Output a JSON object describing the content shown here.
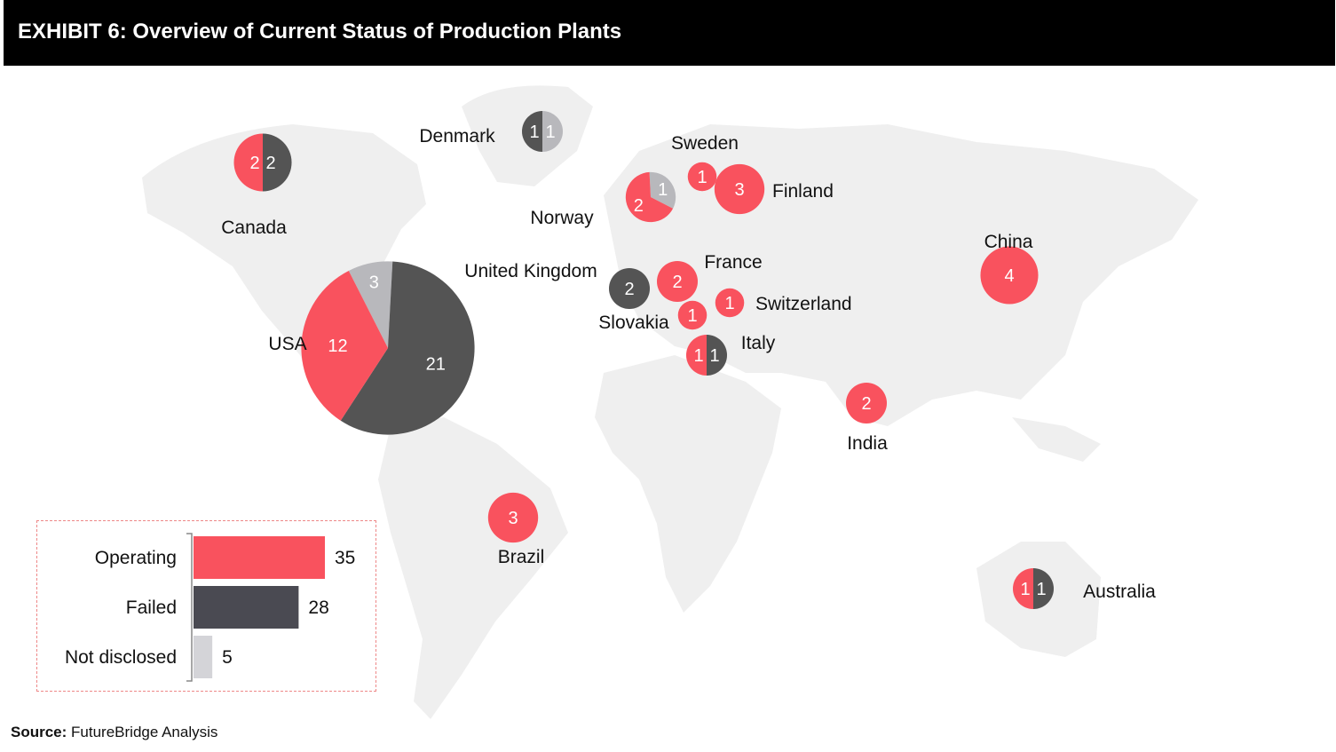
{
  "header": {
    "title": "EXHIBIT 6: Overview of Current Status of Production Plants"
  },
  "source": {
    "label": "Source:",
    "text": "FutureBridge Analysis"
  },
  "colors": {
    "operating": "#F9525E",
    "failed": "#545454",
    "not_disclosed": "#B8B8BC",
    "summary_failed": "#4A4A52",
    "summary_not_disclosed": "#D4D4D8",
    "map": "#EFEFEF"
  },
  "chart_data": [
    {
      "type": "pie",
      "title": "",
      "categories": [
        "Operating",
        "Failed",
        "Not disclosed"
      ],
      "countries": [
        {
          "name": "Canada",
          "values": [
            2,
            2,
            0
          ]
        },
        {
          "name": "Denmark",
          "values": [
            0,
            1,
            1
          ]
        },
        {
          "name": "Norway",
          "values": [
            2,
            0,
            1
          ]
        },
        {
          "name": "Sweden",
          "values": [
            1,
            0,
            0
          ]
        },
        {
          "name": "Finland",
          "values": [
            3,
            0,
            0
          ]
        },
        {
          "name": "China",
          "values": [
            4,
            0,
            0
          ]
        },
        {
          "name": "United Kingdom",
          "values": [
            0,
            2,
            0
          ]
        },
        {
          "name": "France",
          "values": [
            2,
            0,
            0
          ]
        },
        {
          "name": "Switzerland",
          "values": [
            1,
            0,
            0
          ]
        },
        {
          "name": "Slovakia",
          "values": [
            1,
            0,
            0
          ]
        },
        {
          "name": "Italy",
          "values": [
            1,
            1,
            0
          ]
        },
        {
          "name": "USA",
          "values": [
            12,
            21,
            3
          ]
        },
        {
          "name": "India",
          "values": [
            2,
            0,
            0
          ]
        },
        {
          "name": "Brazil",
          "values": [
            3,
            0,
            0
          ]
        },
        {
          "name": "Australia",
          "values": [
            1,
            1,
            0
          ]
        }
      ]
    },
    {
      "type": "bar",
      "orientation": "horizontal",
      "categories": [
        "Operating",
        "Failed",
        "Not disclosed"
      ],
      "values": [
        35,
        28,
        5
      ]
    }
  ]
}
